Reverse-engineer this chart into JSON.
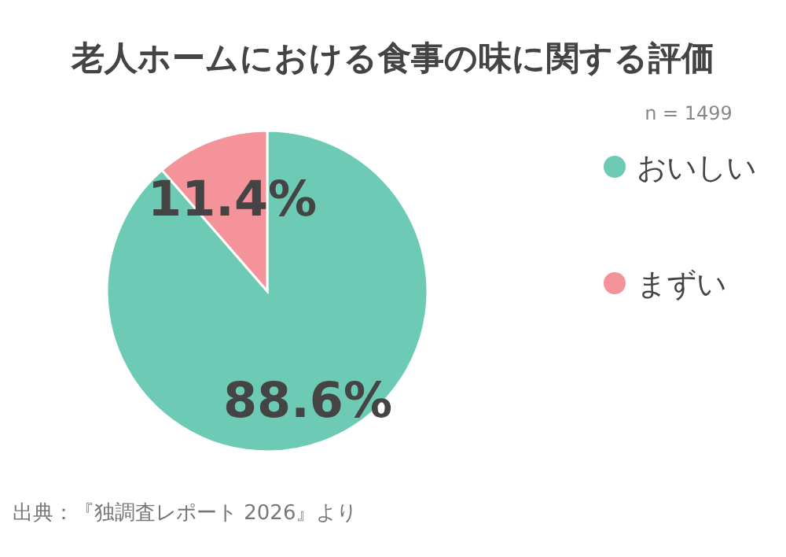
{
  "chart_data": {
    "type": "pie",
    "title": "老人ホームにおける食事の味に関する評価",
    "categories": [
      "おいしい",
      "まずい"
    ],
    "values": [
      88.6,
      11.4
    ],
    "colors": [
      "#6dcbb5",
      "#f4939a"
    ],
    "value_labels": [
      "88.6%",
      "11.4%"
    ],
    "legend": "right",
    "annotations": [
      "n = 1499",
      "出典：『独調査レポート 2026』より"
    ]
  }
}
